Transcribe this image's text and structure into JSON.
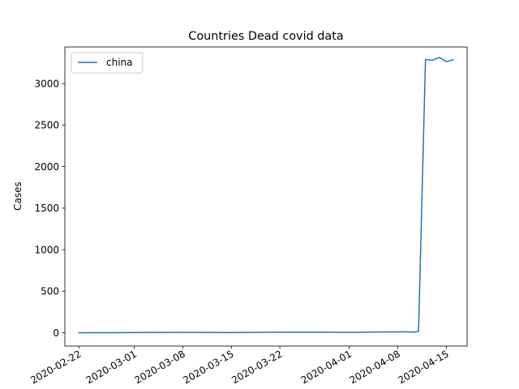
{
  "chart_data": {
    "type": "line",
    "title": "Countries Dead covid data",
    "xlabel": "",
    "ylabel": "Cases",
    "x_type": "date",
    "xlim": [
      "2020-02-20",
      "2020-04-18"
    ],
    "ylim": [
      -160,
      3440
    ],
    "x_ticks": [
      "2020-02-22",
      "2020-03-01",
      "2020-03-08",
      "2020-03-15",
      "2020-03-22",
      "2020-04-01",
      "2020-04-08",
      "2020-04-15"
    ],
    "y_ticks": [
      0,
      500,
      1000,
      1500,
      2000,
      2500,
      3000
    ],
    "legend": {
      "position": "top-left"
    },
    "grid": false,
    "series": [
      {
        "name": "china",
        "color": "#1f77b4",
        "points": [
          [
            "2020-02-22",
            0
          ],
          [
            "2020-03-01",
            2
          ],
          [
            "2020-03-08",
            5
          ],
          [
            "2020-03-15",
            2
          ],
          [
            "2020-03-22",
            7
          ],
          [
            "2020-03-28",
            7
          ],
          [
            "2020-04-01",
            5
          ],
          [
            "2020-04-05",
            8
          ],
          [
            "2020-04-09",
            12
          ],
          [
            "2020-04-10",
            7
          ],
          [
            "2020-04-11",
            15
          ],
          [
            "2020-04-12",
            3290
          ],
          [
            "2020-04-13",
            3280
          ],
          [
            "2020-04-14",
            3315
          ],
          [
            "2020-04-15",
            3265
          ],
          [
            "2020-04-16",
            3285
          ]
        ]
      }
    ]
  }
}
